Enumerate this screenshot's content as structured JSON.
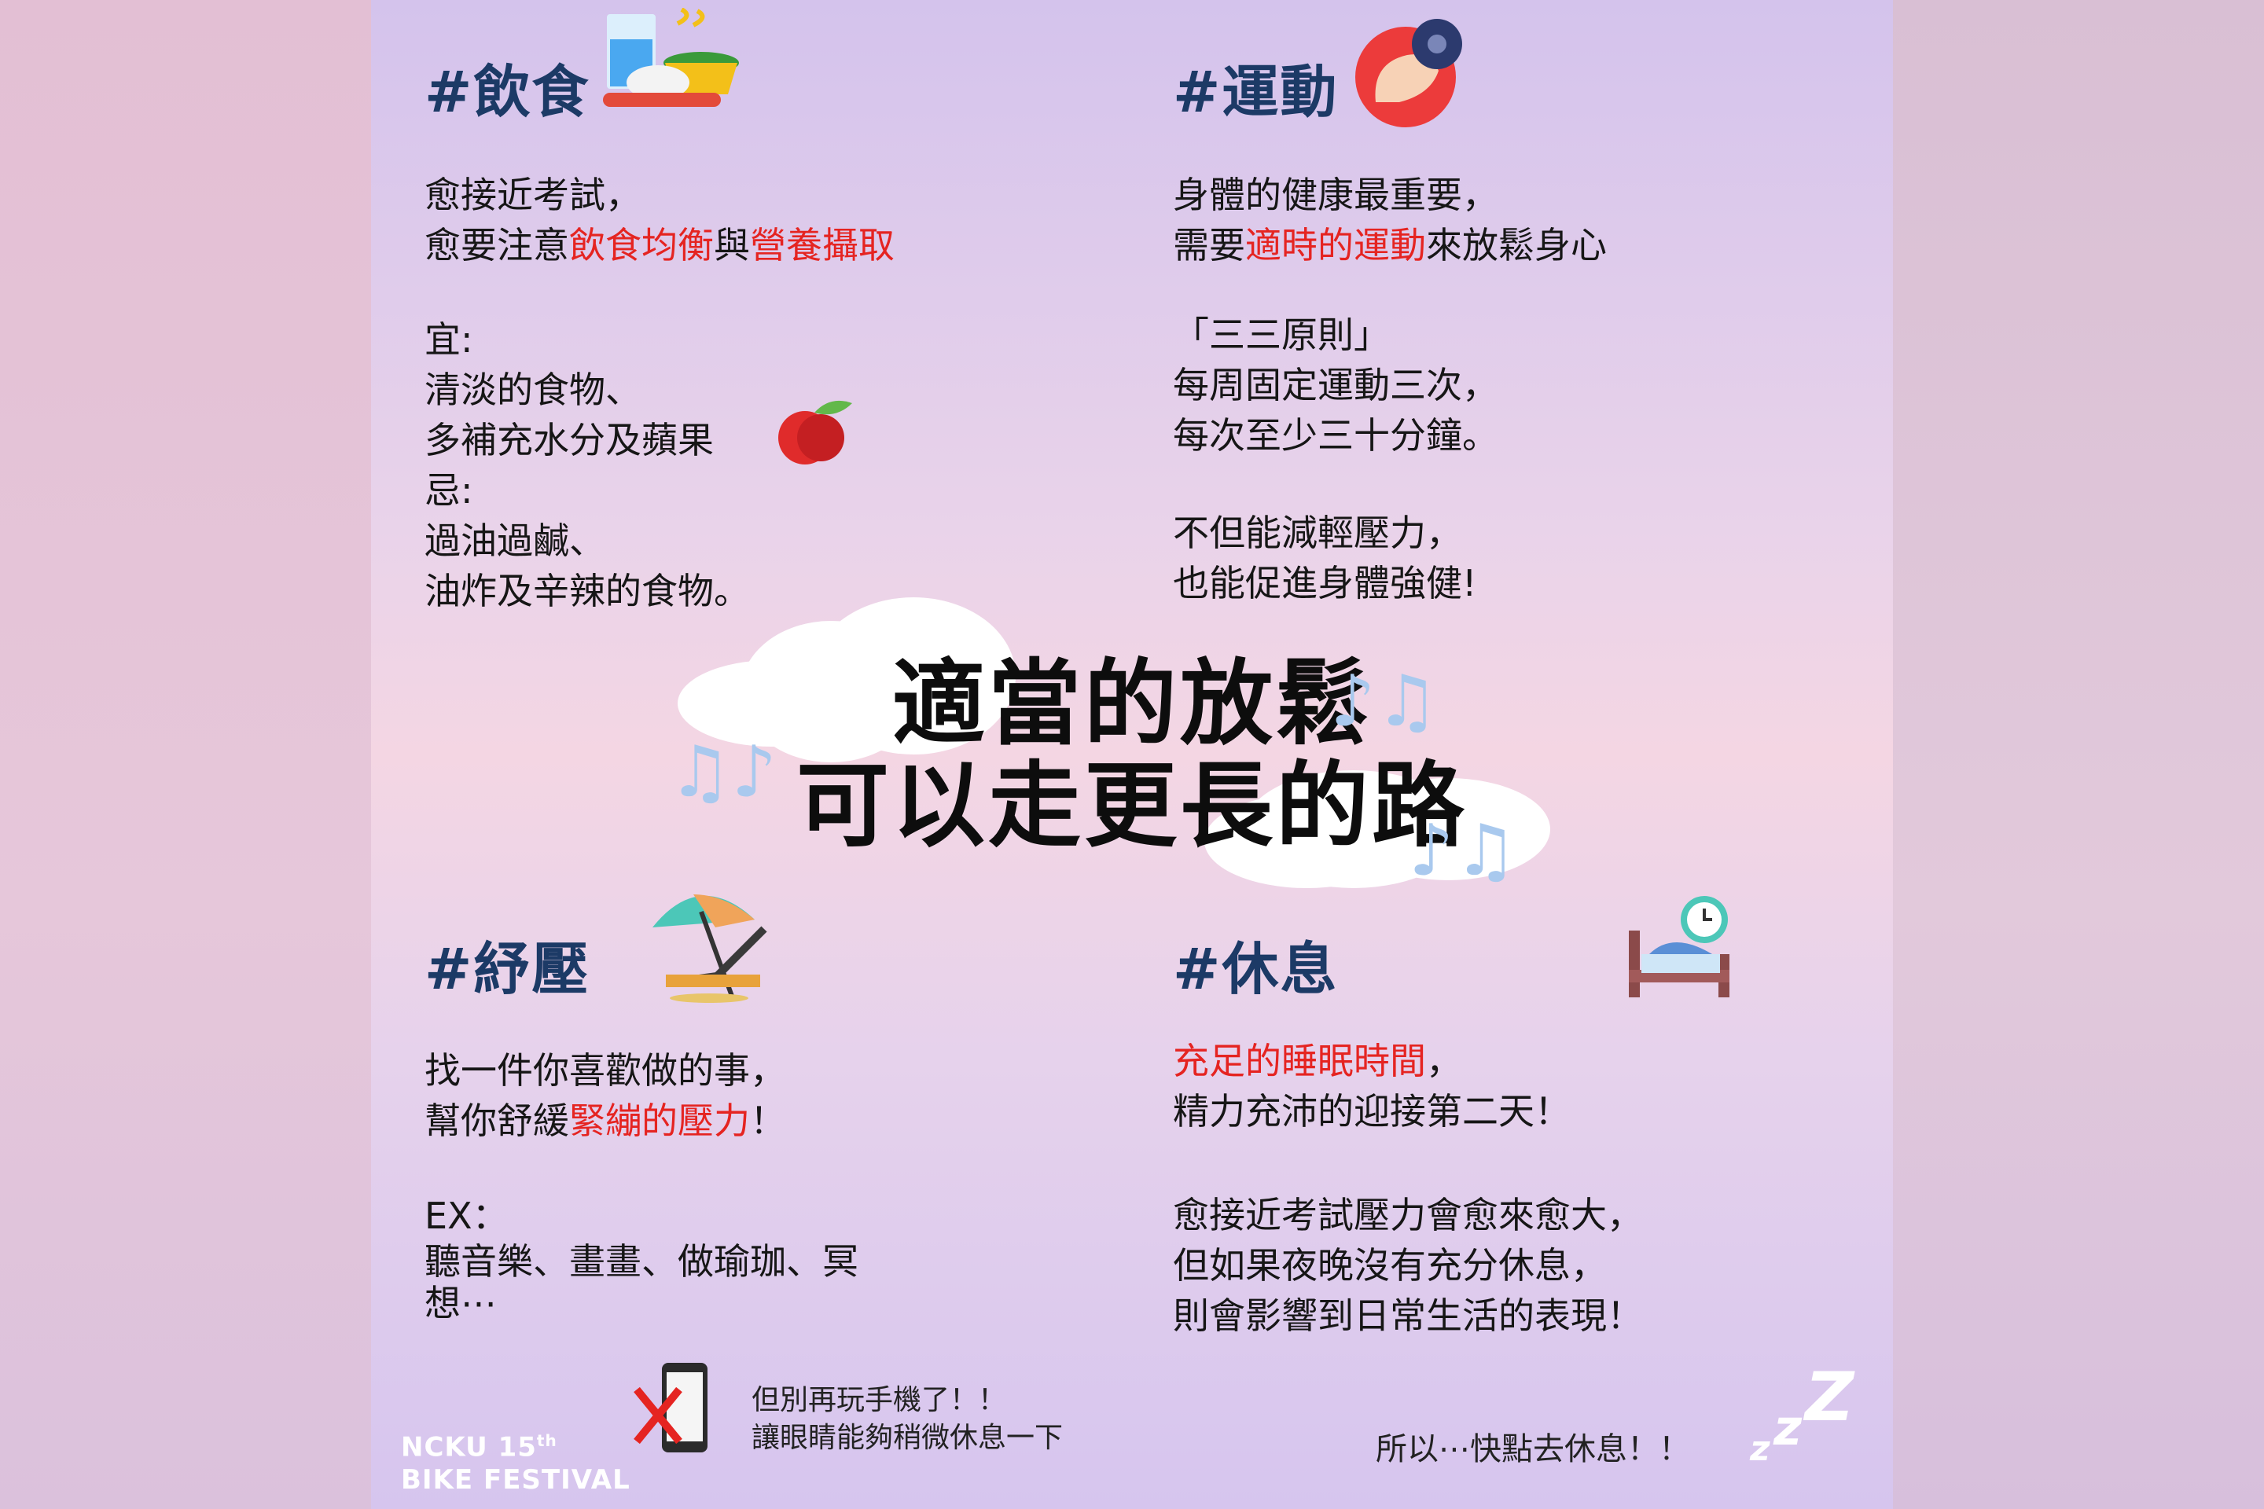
{
  "food": {
    "heading": "#飲食",
    "l1": "愈接近考試，",
    "l2_pre": "愈要注意",
    "l2_red1": "飲食均衡",
    "l2_mid": "與",
    "l2_red2": "營養攝取",
    "yi": "宜:",
    "yi1": "清淡的食物、",
    "yi2": "多補充水分及蘋果",
    "ji": "忌:",
    "ji1": "過油過鹹、",
    "ji2": "油炸及辛辣的食物。"
  },
  "sport": {
    "heading": "#運動",
    "l1": "身體的健康最重要，",
    "l2_pre": "需要",
    "l2_red": "適時的運動",
    "l2_post": "來放鬆身心",
    "rule": "「三三原則」",
    "r1": "每周固定運動三次，",
    "r2": "每次至少三十分鐘。",
    "b1": "不但能減輕壓力，",
    "b2": "也能促進身體強健!"
  },
  "center": {
    "line1": "適當的放鬆",
    "line2": "可以走更長的路"
  },
  "stress": {
    "heading": "#紓壓",
    "l1": "找一件你喜歡做的事，",
    "l2_pre": "幫你舒緩",
    "l2_red": "緊繃的壓力",
    "l2_post": "！",
    "ex": "EX：",
    "ex1": "聽音樂、畫畫、做瑜珈、冥",
    "ex2": "想⋯"
  },
  "rest": {
    "heading": "#休息",
    "l1_red": "充足的睡眠時間",
    "l1_post": "，",
    "l2": "精力充沛的迎接第二天！",
    "p1": "愈接近考試壓力會愈來愈大，",
    "p2": "但如果夜晚沒有充分休息，",
    "p3": "則會影響到日常生活的表現！"
  },
  "footer": {
    "phone1": "但別再玩手機了！！",
    "phone2": "讓眼睛能夠稍微休息一下",
    "final": "所以⋯快點去休息！！",
    "logo1": "NCKU 15",
    "logo_sup": "th",
    "logo2": "BIKE FESTIVAL"
  },
  "colors": {
    "accent_red": "#e52421",
    "heading_navy": "#1c3a66"
  },
  "icons": [
    "food-tray-icon",
    "muscle-dumbbell-icon",
    "apple-icon",
    "beach-chair-icon",
    "bed-clock-icon",
    "music-note-icon",
    "no-phone-icon",
    "zzz-icon"
  ]
}
